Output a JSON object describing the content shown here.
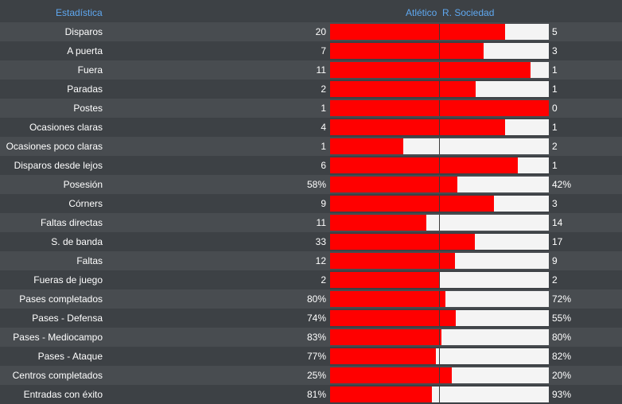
{
  "header": {
    "stat_label": "Estadística",
    "home_team": "Atlético",
    "away_team": "R. Sociedad"
  },
  "colors": {
    "home": "#ff0000",
    "away": "#f4f4f4",
    "header_text": "#5fa8f0"
  },
  "stats": [
    {
      "label": "Disparos",
      "home": "20",
      "away": "5",
      "home_share": 0.8
    },
    {
      "label": "A puerta",
      "home": "7",
      "away": "3",
      "home_share": 0.7
    },
    {
      "label": "Fuera",
      "home": "11",
      "away": "1",
      "home_share": 0.917
    },
    {
      "label": "Paradas",
      "home": "2",
      "away": "1",
      "home_share": 0.667
    },
    {
      "label": "Postes",
      "home": "1",
      "away": "0",
      "home_share": 1.0
    },
    {
      "label": "Ocasiones claras",
      "home": "4",
      "away": "1",
      "home_share": 0.8
    },
    {
      "label": "Ocasiones poco claras",
      "home": "1",
      "away": "2",
      "home_share": 0.333
    },
    {
      "label": "Disparos desde lejos",
      "home": "6",
      "away": "1",
      "home_share": 0.857
    },
    {
      "label": "Posesión",
      "home": "58%",
      "away": "42%",
      "home_share": 0.58
    },
    {
      "label": "Córners",
      "home": "9",
      "away": "3",
      "home_share": 0.75
    },
    {
      "label": "Faltas directas",
      "home": "11",
      "away": "14",
      "home_share": 0.44
    },
    {
      "label": "S. de banda",
      "home": "33",
      "away": "17",
      "home_share": 0.66
    },
    {
      "label": "Faltas",
      "home": "12",
      "away": "9",
      "home_share": 0.571
    },
    {
      "label": "Fueras de juego",
      "home": "2",
      "away": "2",
      "home_share": 0.5
    },
    {
      "label": "Pases completados",
      "home": "80%",
      "away": "72%",
      "home_share": 0.526
    },
    {
      "label": "Pases - Defensa",
      "home": "74%",
      "away": "55%",
      "home_share": 0.574
    },
    {
      "label": "Pases - Mediocampo",
      "home": "83%",
      "away": "80%",
      "home_share": 0.509
    },
    {
      "label": "Pases - Ataque",
      "home": "77%",
      "away": "82%",
      "home_share": 0.484
    },
    {
      "label": "Centros completados",
      "home": "25%",
      "away": "20%",
      "home_share": 0.556
    },
    {
      "label": "Entradas con éxito",
      "home": "81%",
      "away": "93%",
      "home_share": 0.466
    }
  ]
}
